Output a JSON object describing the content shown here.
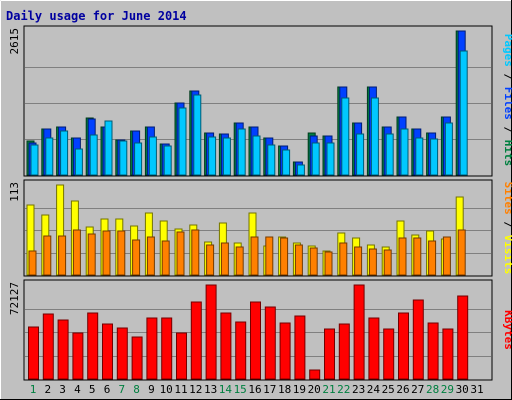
{
  "chart_data": {
    "type": "bar",
    "title": "Daily usage for June 2014",
    "x": [
      "1",
      "2",
      "3",
      "4",
      "5",
      "6",
      "7",
      "8",
      "9",
      "10",
      "11",
      "12",
      "13",
      "14",
      "15",
      "16",
      "17",
      "18",
      "19",
      "20",
      "21",
      "22",
      "23",
      "24",
      "25",
      "26",
      "27",
      "28",
      "29",
      "30",
      "31"
    ],
    "weekend_days": [
      "1",
      "7",
      "8",
      "14",
      "15",
      "21",
      "22",
      "28",
      "29"
    ],
    "panels": [
      {
        "key": "pages_files_hits",
        "max_label": "2615",
        "ylim": [
          0,
          2615
        ],
        "axis_labels": [
          {
            "text": "Pages",
            "color": "#00c8ff"
          },
          {
            "text": " / ",
            "color": "#000000"
          },
          {
            "text": "Files",
            "color": "#0040ff"
          },
          {
            "text": " / ",
            "color": "#000000"
          },
          {
            "text": "Hits",
            "color": "#008040"
          }
        ],
        "series": [
          {
            "name": "Hits",
            "color": "#008040",
            "values": [
              610,
              830,
              880,
              680,
              1040,
              880,
              640,
              790,
              880,
              560,
              1300,
              1530,
              770,
              740,
              950,
              880,
              670,
              530,
              230,
              760,
              700,
              1600,
              950,
              1600,
              880,
              1050,
              840,
              760,
              1060,
              2615,
              0
            ]
          },
          {
            "name": "Files",
            "color": "#0040ff",
            "values": [
              590,
              830,
              880,
              680,
              1020,
              880,
              640,
              790,
              880,
              560,
              1300,
              1530,
              770,
              740,
              950,
              880,
              670,
              530,
              230,
              700,
              700,
              1600,
              950,
              1600,
              880,
              1050,
              840,
              760,
              1060,
              2615,
              0
            ]
          },
          {
            "name": "Pages",
            "color": "#00c8ff",
            "values": [
              540,
              680,
              800,
              480,
              720,
              980,
              620,
              590,
              690,
              520,
              1210,
              1450,
              690,
              680,
              840,
              700,
              550,
              460,
              190,
              580,
              580,
              1400,
              740,
              1400,
              740,
              830,
              670,
              650,
              950,
              2250,
              0
            ]
          }
        ]
      },
      {
        "key": "sites_visits",
        "max_label": "113",
        "ylim": [
          0,
          113
        ],
        "axis_labels": [
          {
            "text": "Sites",
            "color": "#ff8000"
          },
          {
            "text": " / ",
            "color": "#000000"
          },
          {
            "text": "Visits",
            "color": "#ffff00"
          }
        ],
        "series": [
          {
            "name": "Visits",
            "color": "#ffff00",
            "values": [
              88,
              75,
              113,
              93,
              60,
              70,
              70,
              62,
              78,
              68,
              58,
              63,
              42,
              65,
              40,
              78,
              36,
              48,
              40,
              36,
              30,
              53,
              46,
              38,
              35,
              68,
              50,
              55,
              45,
              98,
              0
            ]
          },
          {
            "name": "Sites",
            "color": "#ff8000",
            "values": [
              30,
              49,
              49,
              56,
              51,
              55,
              55,
              44,
              48,
              43,
              54,
              56,
              38,
              40,
              35,
              48,
              48,
              46,
              38,
              34,
              29,
              40,
              35,
              33,
              32,
              47,
              46,
              43,
              48,
              56,
              0
            ]
          }
        ]
      },
      {
        "key": "kbytes",
        "max_label": "72127",
        "ylim": [
          0,
          72127
        ],
        "axis_labels": [
          {
            "text": "KBytes",
            "color": "#ff0000"
          }
        ],
        "series": [
          {
            "name": "KBytes",
            "color": "#ff0000",
            "values": [
              40000,
              50000,
              45000,
              35000,
              51000,
              42000,
              39000,
              32000,
              47000,
              47000,
              35000,
              59000,
              72127,
              51000,
              44000,
              59000,
              55000,
              43000,
              48000,
              7000,
              38000,
              42000,
              72127,
              47000,
              38000,
              51000,
              61000,
              43000,
              38000,
              64000,
              0
            ]
          }
        ]
      }
    ]
  }
}
